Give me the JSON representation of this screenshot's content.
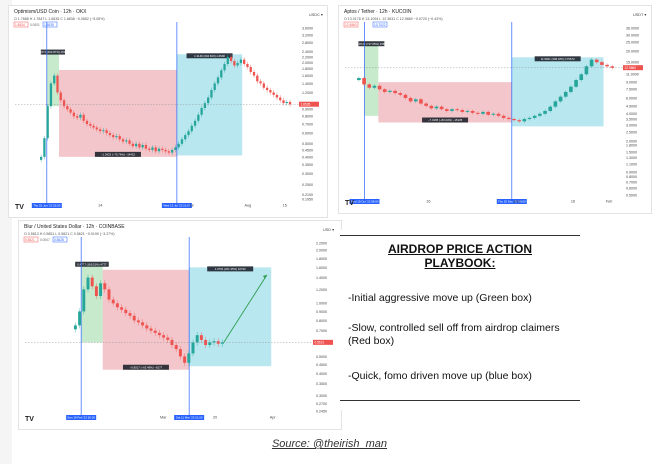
{
  "source": "Source: @theirish_man",
  "playbook": {
    "title_line1": "AIRDROP PRICE ACTION",
    "title_line2": "PLAYBOOK:",
    "item1": "-Initial aggressive move up (Green box)",
    "item2": "-Slow, controlled sell off from airdrop claimers (Red box)",
    "item3": "-Quick, fomo driven move up (blue box)"
  },
  "colors": {
    "green": "#8fd39a",
    "red": "#e58e98",
    "blue": "#72d0e0",
    "up": "#26a69a",
    "down": "#ef5350",
    "line": "#2962ff"
  },
  "chart_data": [
    {
      "type": "candlestick",
      "title": "Optimism/USD Coin · 12h · OKX",
      "ohlc": "O 1.7688  H 1.7847  L 1.6835  C 1.6836  −0.0852 (−5.05%)",
      "price_box_left": "1.6534",
      "price_box_mid": "0.0001",
      "price_box_right": "1.6535",
      "currency": "USDC ▾",
      "y_ticks": [
        "3.6000",
        "3.2000",
        "2.8000",
        "2.4000",
        "2.2000",
        "2.0000",
        "1.8000",
        "1.6000",
        "1.4000",
        "1.2000",
        "1.0000",
        "0.9000",
        "0.8000",
        "0.7000",
        "0.6000",
        "0.5000",
        "0.4500",
        "0.4000",
        "0.3500",
        "0.3000",
        "0.2500",
        "0.2100",
        "0.1950"
      ],
      "x_ticks": [
        "14",
        "Jul",
        "Aug",
        "15"
      ],
      "date_labels": [
        "Thu 02 Jun '22  02:00",
        "Wed 13 Jul '22  21:00"
      ],
      "labels": {
        "green": "1.2271 (404.87%) 15171",
        "red": "−1.3423 (−75.76%) −14432",
        "blue": "1.3149 (304.81%) 13596",
        "price_tag": "1.6535",
        "price_tag2": "1.0013"
      },
      "boxes": {
        "green": {
          "start": 0.112,
          "end": 0.155,
          "bottom": 0.95,
          "top": 2.45
        },
        "red": {
          "start": 0.155,
          "end": 0.57,
          "bottom": 0.4,
          "top": 1.76
        },
        "blue": {
          "start": 0.57,
          "end": 0.8,
          "bottom": 0.41,
          "top": 2.3
        }
      },
      "candles": [
        0.4,
        0.55,
        0.95,
        1.4,
        1.6,
        1.2,
        1.05,
        0.95,
        0.9,
        0.85,
        0.8,
        0.78,
        0.82,
        0.74,
        0.7,
        0.68,
        0.66,
        0.64,
        0.62,
        0.63,
        0.6,
        0.58,
        0.56,
        0.57,
        0.54,
        0.52,
        0.53,
        0.5,
        0.48,
        0.5,
        0.47,
        0.49,
        0.46,
        0.45,
        0.47,
        0.44,
        0.46,
        0.45,
        0.44,
        0.43,
        0.45,
        0.47,
        0.5,
        0.54,
        0.58,
        0.62,
        0.68,
        0.74,
        0.82,
        0.92,
        1.0,
        1.1,
        1.25,
        1.4,
        1.55,
        1.75,
        1.95,
        2.2,
        2.05,
        1.9,
        1.98,
        2.1,
        1.95,
        1.85,
        1.7,
        1.6,
        1.45,
        1.4,
        1.3,
        1.25,
        1.2,
        1.15,
        1.1,
        1.05,
        1.0,
        1.02,
        0.98
      ]
    },
    {
      "type": "candlestick",
      "title": "Aptos / Tether · 12h · KUCOIN",
      "ohlc": "O 13.0178  H 13.1094  L 12.3631  C 12.9860  −0.0720 (−0.43%)",
      "price_box_left": "12.9860",
      "price_box_mid": "",
      "price_box_right": "13.7022",
      "currency": "USDT ▾",
      "y_ticks": [
        "36.0000",
        "30.0000",
        "25.0000",
        "20.0000",
        "15.0000",
        "11.0000",
        "9.0000",
        "7.5000",
        "6.0000",
        "4.9000",
        "4.0000",
        "3.5000",
        "3.0000",
        "2.5000",
        "2.0000",
        "1.8000",
        "1.5000",
        "1.3000",
        "1.1000",
        "0.9000",
        "0.8000",
        "0.7000",
        "0.6000",
        "0.5000"
      ],
      "x_ticks": [
        "16",
        "Dec",
        "16",
        "Feb"
      ],
      "date_labels": [
        "Wed 19 Oct '22  08:00",
        "Thu 29 Dec '22  08:00"
      ],
      "labels": {
        "green": "15.8749 (727.65%) 15873",
        "red": "−7.3165 (−80.44%) −15135",
        "blue": "11.5001 (308.18%) 175670",
        "price_tag": "12.9860",
        "price_tag2": "13.7022"
      },
      "boxes": {
        "green": {
          "start": 0.07,
          "end": 0.12,
          "bottom": 3.8,
          "top": 25.0
        },
        "red": {
          "start": 0.12,
          "end": 0.6,
          "bottom": 3.2,
          "top": 9.0
        },
        "blue": {
          "start": 0.6,
          "end": 0.93,
          "bottom": 2.9,
          "top": 17.0
        }
      },
      "candles": [
        10.0,
        8.5,
        7.8,
        8.2,
        7.5,
        7.0,
        7.2,
        6.8,
        6.5,
        6.0,
        5.5,
        5.8,
        5.2,
        4.9,
        4.6,
        4.8,
        4.5,
        4.3,
        4.5,
        4.4,
        4.2,
        4.3,
        4.1,
        4.0,
        4.2,
        3.9,
        4.0,
        3.8,
        3.6,
        3.5,
        3.4,
        3.3,
        3.5,
        3.6,
        3.8,
        4.0,
        4.3,
        4.8,
        5.5,
        6.2,
        7.0,
        8.0,
        9.5,
        11.0,
        13.5,
        16.0,
        15.0,
        14.0,
        13.5,
        13.0
      ]
    },
    {
      "type": "candlestick",
      "title": "Blur / United States Dollar · 12h · COINBASE",
      "ohlc": "O 0.5813  H 0.5851  L 0.5621  C 0.5621  −0.0190 (−3.27%)",
      "price_box_left": "0.5621",
      "price_box_mid": "0.0007",
      "price_box_right": "0.5628",
      "currency": "USD ▾",
      "y_ticks": [
        "2.2000",
        "2.0000",
        "1.8000",
        "1.6000",
        "1.4000",
        "1.2000",
        "1.0000",
        "0.9000",
        "0.8000",
        "0.7000",
        "0.6000",
        "0.5000",
        "0.4500",
        "0.4000",
        "0.3500",
        "0.3000",
        "0.2700",
        "0.2450"
      ],
      "x_ticks": [
        "Mar",
        "20",
        "Apr"
      ],
      "date_labels": [
        "Sun 19 Feb '23  20:00",
        "Sat 11 Mar '23  21:00"
      ],
      "labels": {
        "green": "0.4777 (169.51%) 4777",
        "red": "−0.8017 (−65.49%) −8177",
        "blue": "1.0791 (201.35%) 10790",
        "price_tag": "0.5621",
        "price_tag2": "0.5628"
      },
      "boxes": {
        "green": {
          "start": 0.195,
          "end": 0.27,
          "bottom": 0.6,
          "top": 1.7
        },
        "red": {
          "start": 0.27,
          "end": 0.57,
          "bottom": 0.42,
          "top": 1.55
        },
        "blue": {
          "start": 0.57,
          "end": 0.855,
          "bottom": 0.44,
          "top": 1.6
        }
      },
      "candles": [
        0.75,
        0.9,
        1.2,
        1.4,
        1.25,
        1.1,
        1.3,
        1.2,
        1.05,
        1.0,
        0.95,
        0.92,
        0.88,
        0.85,
        0.8,
        0.78,
        0.75,
        0.72,
        0.7,
        0.68,
        0.66,
        0.64,
        0.62,
        0.58,
        0.55,
        0.5,
        0.46,
        0.52,
        0.6,
        0.66,
        0.62,
        0.58,
        0.6,
        0.61,
        0.59,
        0.6
      ]
    }
  ]
}
